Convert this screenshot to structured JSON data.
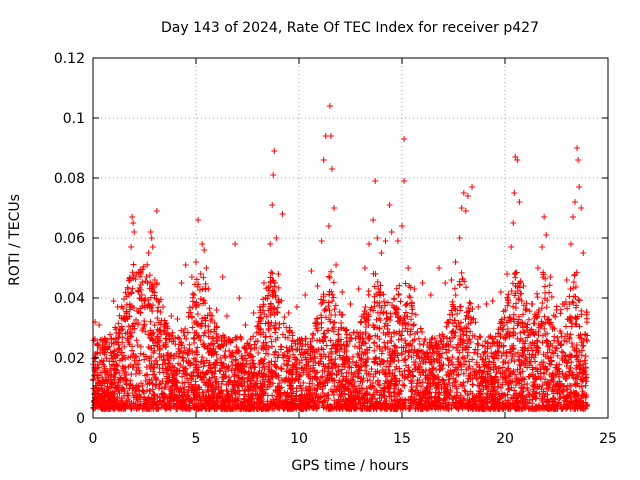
{
  "colors": {
    "series": "#ff0000",
    "grid": "#a0a0a0",
    "axis": "#000000",
    "background": "#ffffff"
  },
  "chart_data": {
    "type": "scatter",
    "title": "Day 143 of 2024, Rate Of TEC Index for receiver p427",
    "xlabel": "GPS time / hours",
    "ylabel": "ROTI / TECUs",
    "xlim": [
      0,
      25
    ],
    "ylim": [
      0,
      0.12
    ],
    "xticks": [
      0,
      5,
      10,
      15,
      20,
      25
    ],
    "xtick_labels": [
      "0",
      "5",
      "10",
      "15",
      "20",
      "25"
    ],
    "yticks": [
      0,
      0.02,
      0.04,
      0.06,
      0.08,
      0.1,
      0.12
    ],
    "ytick_labels": [
      "0",
      "0.02",
      "0.04",
      "0.06",
      "0.08",
      "0.1",
      "0.12"
    ],
    "grid": true,
    "marker": "+",
    "series": [
      {
        "name": "ROTI",
        "points": [
          [
            0.1,
            0.032
          ],
          [
            0.3,
            0.031
          ],
          [
            0.35,
            0.026
          ],
          [
            0.6,
            0.023
          ],
          [
            0.9,
            0.025
          ],
          [
            1.0,
            0.039
          ],
          [
            1.2,
            0.037
          ],
          [
            1.5,
            0.033
          ],
          [
            1.7,
            0.043
          ],
          [
            1.8,
            0.046
          ],
          [
            1.85,
            0.057
          ],
          [
            1.9,
            0.067
          ],
          [
            1.95,
            0.065
          ],
          [
            2.0,
            0.062
          ],
          [
            2.1,
            0.048
          ],
          [
            2.3,
            0.035
          ],
          [
            2.6,
            0.047
          ],
          [
            2.7,
            0.055
          ],
          [
            2.8,
            0.062
          ],
          [
            2.85,
            0.06
          ],
          [
            2.9,
            0.057
          ],
          [
            3.0,
            0.046
          ],
          [
            3.1,
            0.045
          ],
          [
            3.1,
            0.069
          ],
          [
            3.4,
            0.037
          ],
          [
            3.8,
            0.034
          ],
          [
            4.1,
            0.033
          ],
          [
            4.3,
            0.045
          ],
          [
            4.5,
            0.051
          ],
          [
            4.8,
            0.047
          ],
          [
            5.0,
            0.052
          ],
          [
            5.1,
            0.066
          ],
          [
            5.3,
            0.058
          ],
          [
            5.4,
            0.056
          ],
          [
            5.5,
            0.05
          ],
          [
            5.6,
            0.043
          ],
          [
            6.0,
            0.036
          ],
          [
            6.3,
            0.047
          ],
          [
            6.5,
            0.034
          ],
          [
            6.9,
            0.058
          ],
          [
            7.1,
            0.04
          ],
          [
            7.4,
            0.031
          ],
          [
            7.8,
            0.035
          ],
          [
            8.1,
            0.037
          ],
          [
            8.3,
            0.045
          ],
          [
            8.6,
            0.058
          ],
          [
            8.7,
            0.071
          ],
          [
            8.75,
            0.081
          ],
          [
            8.8,
            0.089
          ],
          [
            8.9,
            0.06
          ],
          [
            9.0,
            0.048
          ],
          [
            9.2,
            0.068
          ],
          [
            9.5,
            0.035
          ],
          [
            9.9,
            0.037
          ],
          [
            10.3,
            0.041
          ],
          [
            10.6,
            0.049
          ],
          [
            10.9,
            0.044
          ],
          [
            11.1,
            0.059
          ],
          [
            11.2,
            0.086
          ],
          [
            11.3,
            0.094
          ],
          [
            11.45,
            0.064
          ],
          [
            11.5,
            0.104
          ],
          [
            11.55,
            0.094
          ],
          [
            11.6,
            0.083
          ],
          [
            11.7,
            0.07
          ],
          [
            11.8,
            0.051
          ],
          [
            12.1,
            0.042
          ],
          [
            12.5,
            0.038
          ],
          [
            12.9,
            0.043
          ],
          [
            13.2,
            0.05
          ],
          [
            13.4,
            0.058
          ],
          [
            13.6,
            0.066
          ],
          [
            13.7,
            0.079
          ],
          [
            13.8,
            0.06
          ],
          [
            14.0,
            0.055
          ],
          [
            14.2,
            0.059
          ],
          [
            14.4,
            0.071
          ],
          [
            14.5,
            0.062
          ],
          [
            14.8,
            0.059
          ],
          [
            15.0,
            0.064
          ],
          [
            15.1,
            0.079
          ],
          [
            15.1,
            0.093
          ],
          [
            15.3,
            0.05
          ],
          [
            15.6,
            0.043
          ],
          [
            16.0,
            0.045
          ],
          [
            16.4,
            0.041
          ],
          [
            16.8,
            0.05
          ],
          [
            17.1,
            0.045
          ],
          [
            17.4,
            0.046
          ],
          [
            17.6,
            0.052
          ],
          [
            17.8,
            0.06
          ],
          [
            17.9,
            0.07
          ],
          [
            18.0,
            0.075
          ],
          [
            18.1,
            0.069
          ],
          [
            18.2,
            0.074
          ],
          [
            18.4,
            0.077
          ],
          [
            18.7,
            0.037
          ],
          [
            19.1,
            0.038
          ],
          [
            19.4,
            0.039
          ],
          [
            19.8,
            0.042
          ],
          [
            20.1,
            0.048
          ],
          [
            20.3,
            0.057
          ],
          [
            20.4,
            0.065
          ],
          [
            20.45,
            0.075
          ],
          [
            20.5,
            0.087
          ],
          [
            20.6,
            0.086
          ],
          [
            20.7,
            0.072
          ],
          [
            20.9,
            0.044
          ],
          [
            21.3,
            0.038
          ],
          [
            21.6,
            0.05
          ],
          [
            21.8,
            0.057
          ],
          [
            21.9,
            0.067
          ],
          [
            22.0,
            0.061
          ],
          [
            22.2,
            0.047
          ],
          [
            22.5,
            0.036
          ],
          [
            22.8,
            0.038
          ],
          [
            23.0,
            0.046
          ],
          [
            23.2,
            0.058
          ],
          [
            23.3,
            0.067
          ],
          [
            23.4,
            0.072
          ],
          [
            23.5,
            0.09
          ],
          [
            23.55,
            0.086
          ],
          [
            23.6,
            0.077
          ],
          [
            23.7,
            0.07
          ],
          [
            23.8,
            0.055
          ],
          [
            23.9,
            0.028
          ]
        ]
      }
    ]
  }
}
